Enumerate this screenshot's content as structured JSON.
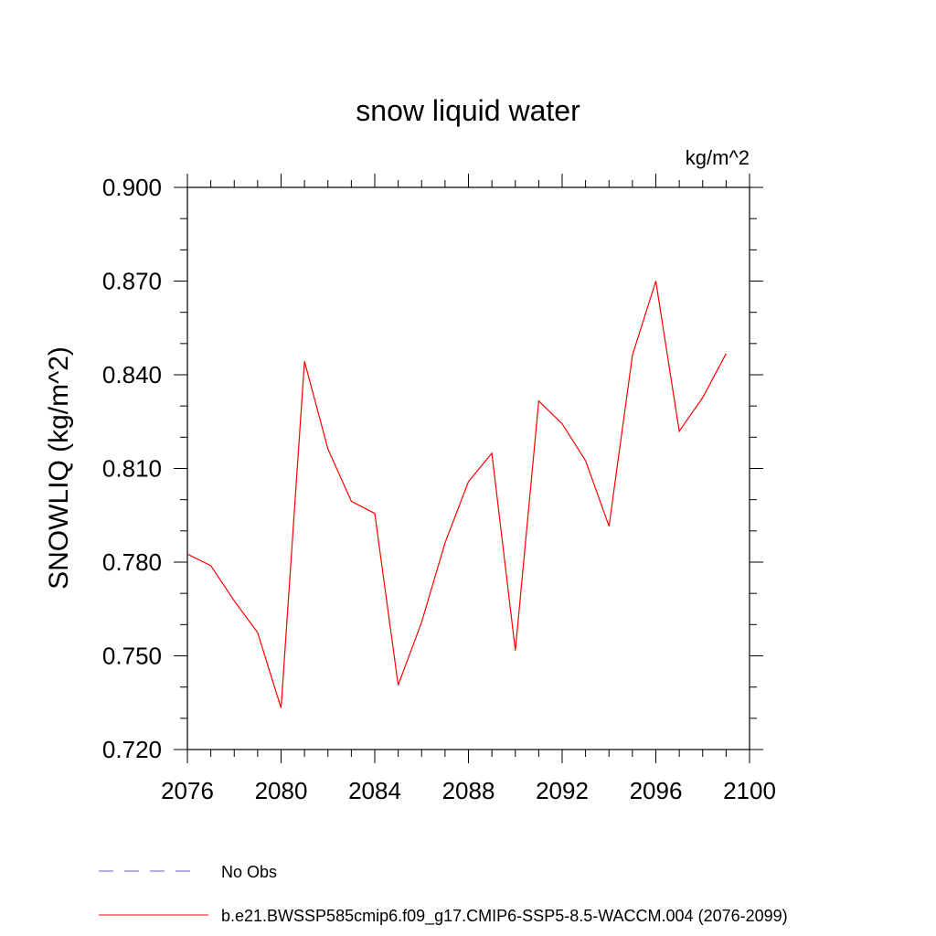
{
  "chart_data": {
    "type": "line",
    "title": "snow liquid water",
    "units": "kg/m^2",
    "ylabel": "SNOWLIQ  (kg/m^2)",
    "xlabel": "",
    "xlim": [
      2076,
      2100
    ],
    "ylim": [
      0.72,
      0.9
    ],
    "xticks": [
      2076,
      2080,
      2084,
      2088,
      2092,
      2096,
      2100
    ],
    "xtick_labels": [
      "2076",
      "2080",
      "2084",
      "2088",
      "2092",
      "2096",
      "2100"
    ],
    "yticks": [
      0.72,
      0.75,
      0.78,
      0.81,
      0.84,
      0.87,
      0.9
    ],
    "ytick_labels": [
      "0.720",
      "0.750",
      "0.780",
      "0.810",
      "0.840",
      "0.870",
      "0.900"
    ],
    "series": [
      {
        "name": "b.e21.BWSSP585cmip6.f09_g17.CMIP6-SSP5-8.5-WACCM.004 (2076-2099)",
        "color": "#ff0000",
        "dash": "solid",
        "x": [
          2076,
          2077,
          2078,
          2079,
          2080,
          2081,
          2082,
          2083,
          2084,
          2085,
          2086,
          2087,
          2088,
          2089,
          2090,
          2091,
          2092,
          2093,
          2094,
          2095,
          2096,
          2097,
          2098,
          2099
        ],
        "values": [
          0.7826,
          0.7789,
          0.7676,
          0.7574,
          0.7333,
          0.8443,
          0.8162,
          0.7995,
          0.7956,
          0.7406,
          0.7608,
          0.7862,
          0.8058,
          0.8149,
          0.7517,
          0.8316,
          0.8243,
          0.8125,
          0.7915,
          0.8463,
          0.87,
          0.8219,
          0.8327,
          0.8468
        ]
      }
    ],
    "legend": [
      {
        "label": "No Obs",
        "color": "#6a5acd",
        "dash": "dashed"
      },
      {
        "label": "b.e21.BWSSP585cmip6.f09_g17.CMIP6-SSP5-8.5-WACCM.004 (2076-2099)",
        "color": "#ff0000",
        "dash": "solid"
      }
    ],
    "legend_position": "bottom-left"
  }
}
